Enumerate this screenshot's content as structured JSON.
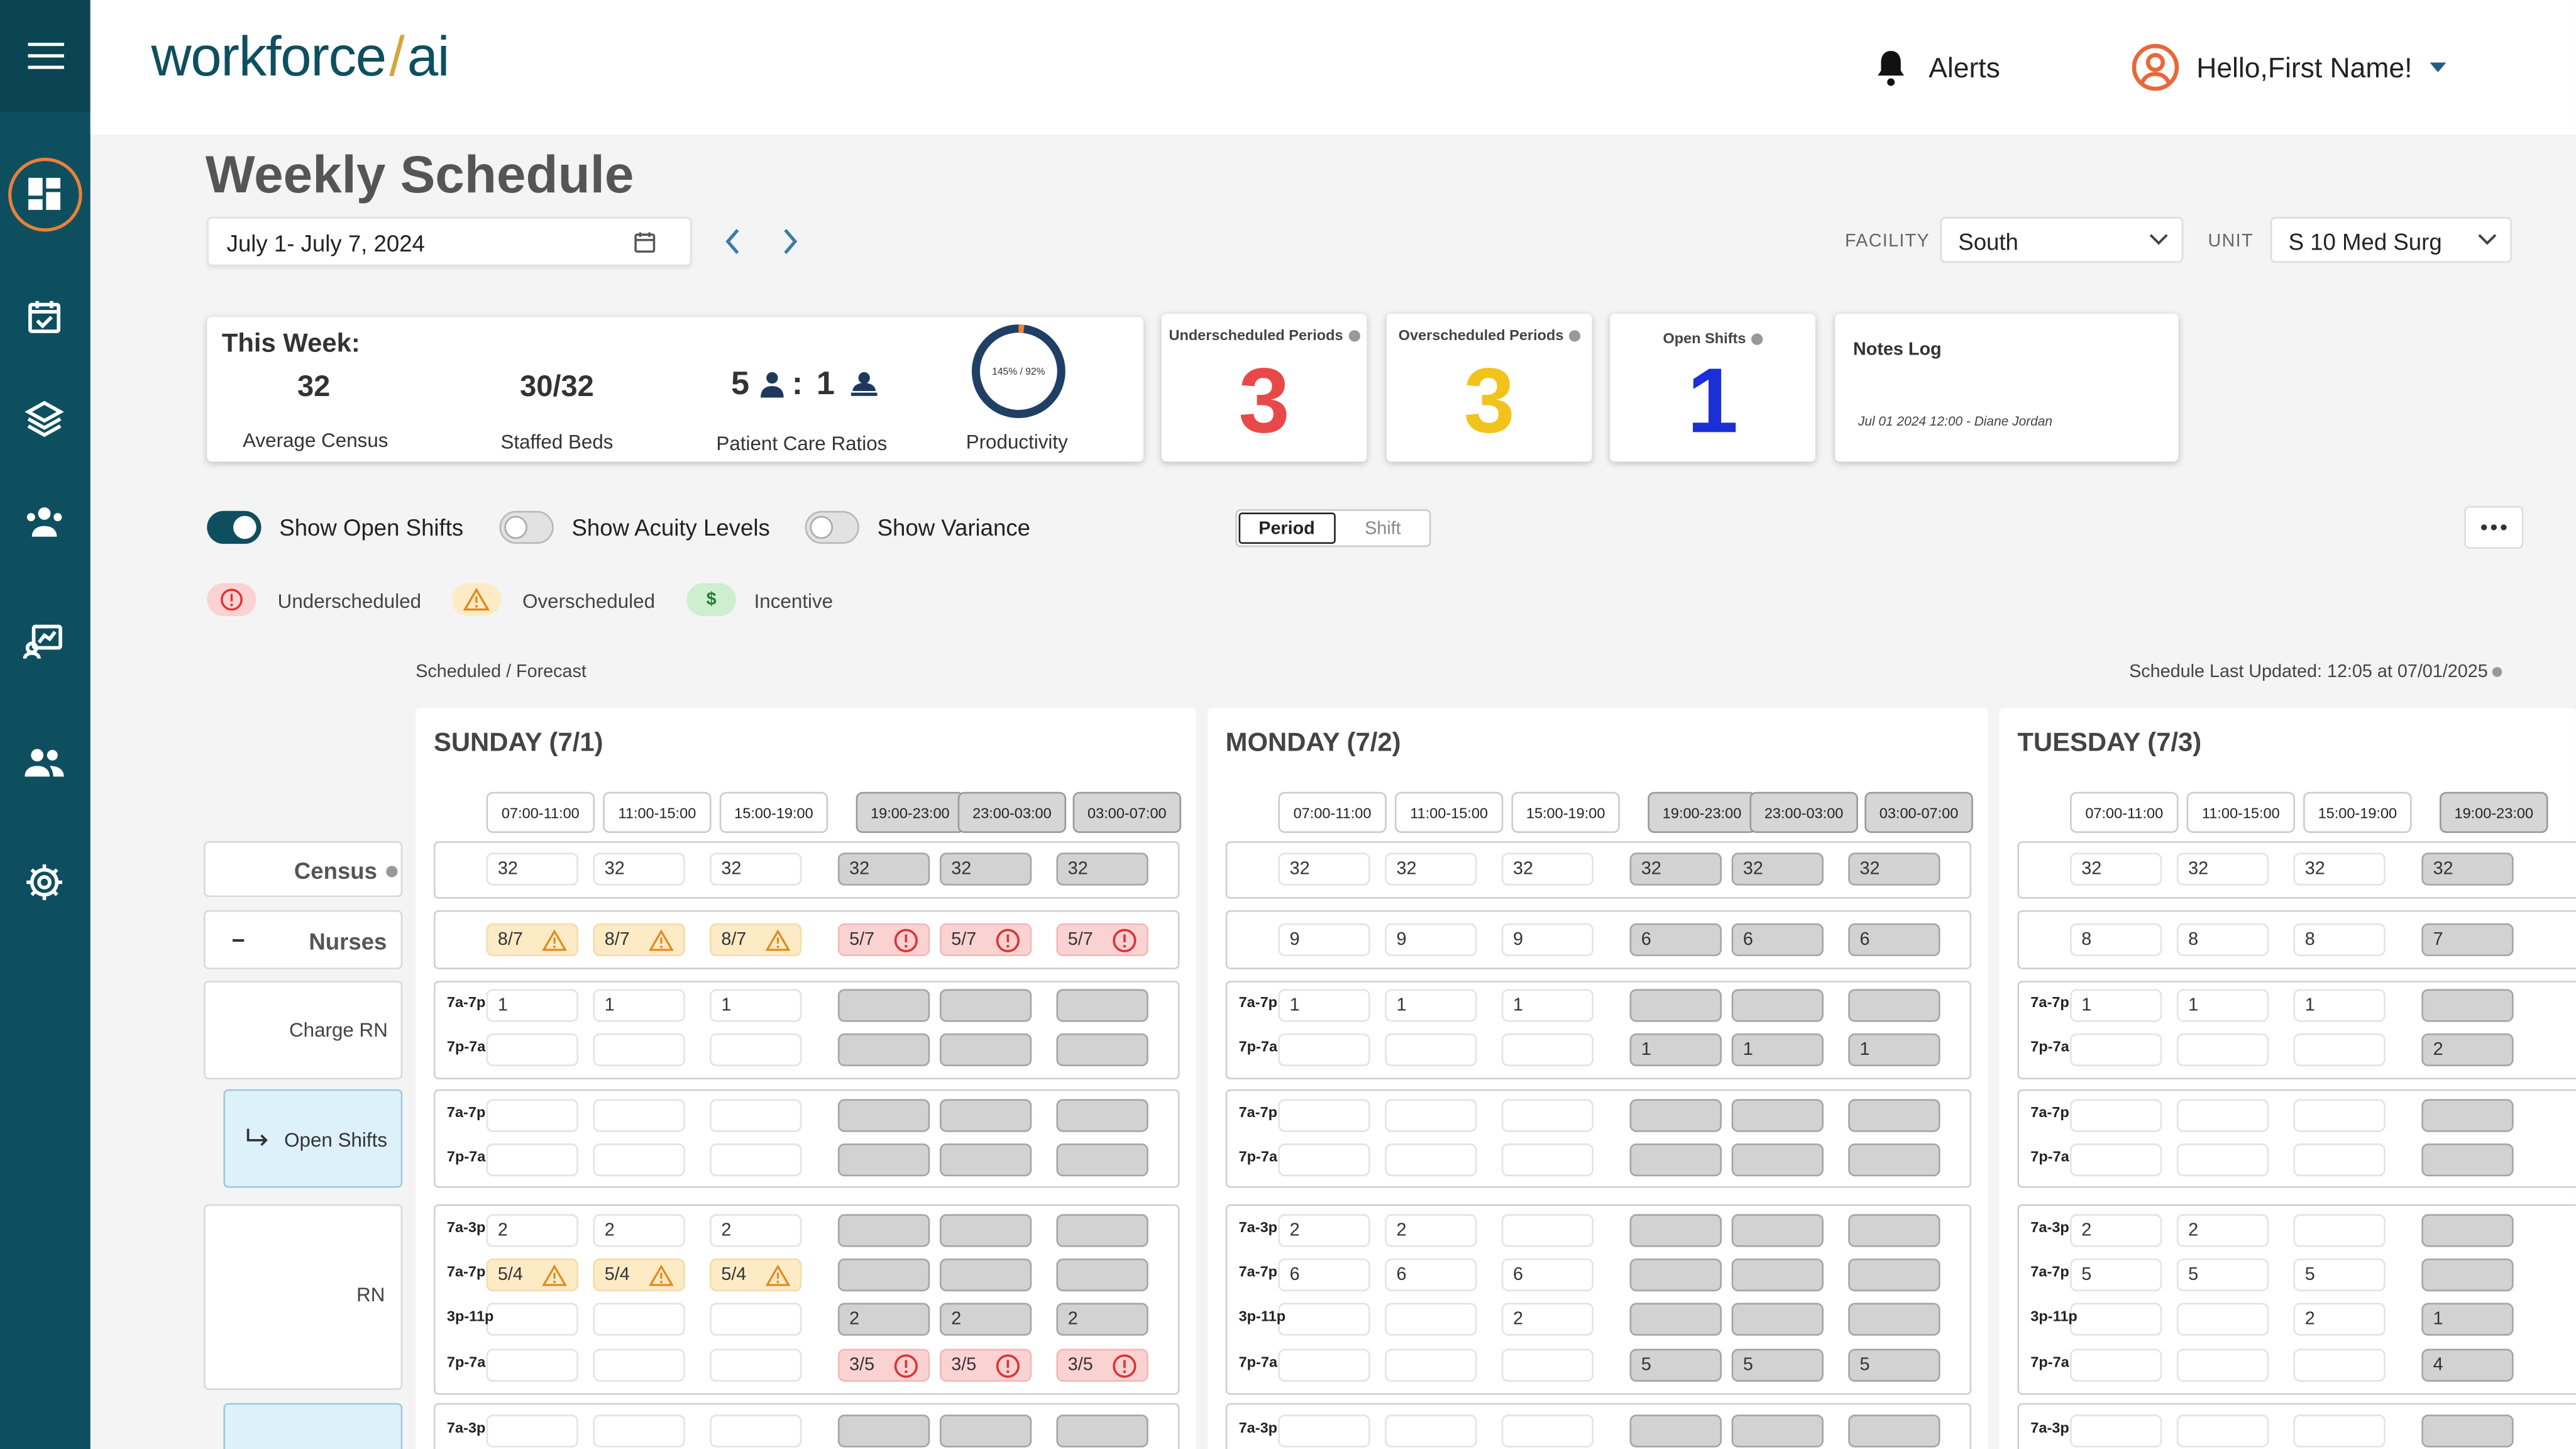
{
  "app": {
    "logo_main": "workforce",
    "logo_slash": "/",
    "logo_ai": "ai"
  },
  "header": {
    "alerts_label": "Alerts",
    "greeting": "Hello,First Name!"
  },
  "sidebar": {
    "items": [
      "dashboard-icon",
      "calendar-check-icon",
      "layers-icon",
      "staff-group-icon",
      "chart-report-icon",
      "users-icon",
      "settings-gear-icon"
    ]
  },
  "page": {
    "title": "Weekly Schedule",
    "date_range": "July 1- July 7, 2024"
  },
  "filters": {
    "facility_label": "FACILITY",
    "facility_value": "South",
    "unit_label": "UNIT",
    "unit_value": "S 10 Med Surg"
  },
  "week_summary": {
    "heading": "This Week:",
    "avg_census_value": "32",
    "avg_census_label": "Average Census",
    "staffed_beds_value": "30/32",
    "staffed_beds_label": "Staffed Beds",
    "ratio_left": "5",
    "ratio_sep": ":",
    "ratio_right": "1",
    "ratio_label": "Patient Care Ratios",
    "productivity_text": "145% / 92%",
    "productivity_label": "Productivity",
    "productivity_fill": 0.02
  },
  "kpis": {
    "underscheduled": {
      "title": "Underscheduled Periods",
      "value": "3",
      "color": "#e84848"
    },
    "overscheduled": {
      "title": "Overscheduled Periods",
      "value": "3",
      "color": "#f2c31a"
    },
    "open_shifts": {
      "title": "Open Shifts",
      "value": "1",
      "color": "#1a2fd6"
    }
  },
  "notes": {
    "title": "Notes Log",
    "entry": "Jul 01 2024 12:00 - Diane Jordan"
  },
  "toggles": {
    "open_shifts": {
      "label": "Show Open Shifts",
      "on": true
    },
    "acuity": {
      "label": "Show Acuity Levels",
      "on": false
    },
    "variance": {
      "label": "Show Variance",
      "on": false
    }
  },
  "view_toggle": {
    "period": "Period",
    "shift": "Shift",
    "selected": "Period"
  },
  "legend": {
    "under": "Underscheduled",
    "over": "Overscheduled",
    "incentive": "Incentive",
    "incentive_symbol": "$"
  },
  "grid": {
    "caption": "Scheduled / Forecast",
    "last_updated": "Schedule Last Updated: 12:05 at 07/01/2025",
    "row_labels": {
      "census": "Census",
      "nurses_toggle": "−",
      "nurses": "Nurses",
      "charge_rn": "Charge RN",
      "open_shifts": "Open Shifts",
      "rn": "RN"
    },
    "days": [
      {
        "title": "SUNDAY (7/1)",
        "slots": [
          "07:00-11:00",
          "11:00-15:00",
          "15:00-19:00",
          "19:00-23:00",
          "23:00-03:00",
          "03:00-07:00"
        ],
        "census": [
          "32",
          "32",
          "32",
          "32",
          "32",
          "32"
        ],
        "nurses": [
          "8/7",
          "8/7",
          "8/7",
          "5/7",
          "5/7",
          "5/7"
        ],
        "charge_7a7p": [
          "1",
          "1",
          "1",
          "",
          "",
          ""
        ],
        "charge_7p7a": [
          "",
          "",
          "",
          "",
          "",
          ""
        ],
        "rn_7a3p": [
          "2",
          "2",
          "2",
          "",
          "",
          ""
        ],
        "rn_7a7p": [
          "5/4",
          "5/4",
          "5/4",
          "",
          "",
          ""
        ],
        "rn_3p11p": [
          "",
          "",
          "",
          "2",
          "2",
          "2"
        ],
        "rn_7p7a": [
          "",
          "",
          "",
          "3/5",
          "3/5",
          "3/5"
        ]
      },
      {
        "title": "MONDAY (7/2)",
        "slots": [
          "07:00-11:00",
          "11:00-15:00",
          "15:00-19:00",
          "19:00-23:00",
          "23:00-03:00",
          "03:00-07:00"
        ],
        "census": [
          "32",
          "32",
          "32",
          "32",
          "32",
          "32"
        ],
        "nurses": [
          "9",
          "9",
          "9",
          "6",
          "6",
          "6"
        ],
        "charge_7a7p": [
          "1",
          "1",
          "1",
          "",
          "",
          ""
        ],
        "charge_7p7a": [
          "",
          "",
          "",
          "1",
          "1",
          "1"
        ],
        "rn_7a3p": [
          "2",
          "2",
          "",
          "",
          "",
          ""
        ],
        "rn_7a7p": [
          "6",
          "6",
          "6",
          "",
          "",
          ""
        ],
        "rn_3p11p": [
          "",
          "",
          "2",
          "",
          "",
          ""
        ],
        "rn_7p7a": [
          "",
          "",
          "",
          "5",
          "5",
          "5"
        ]
      },
      {
        "title": "TUESDAY (7/3)",
        "slots": [
          "07:00-11:00",
          "11:00-15:00",
          "15:00-19:00",
          "19:00-23:00"
        ],
        "census": [
          "32",
          "32",
          "32",
          "32"
        ],
        "nurses": [
          "8",
          "8",
          "8",
          "7"
        ],
        "charge_7a7p": [
          "1",
          "1",
          "1",
          ""
        ],
        "charge_7p7a": [
          "",
          "",
          "",
          "2"
        ],
        "rn_7a3p": [
          "2",
          "2",
          "",
          ""
        ],
        "rn_7a7p": [
          "5",
          "5",
          "5",
          ""
        ],
        "rn_3p11p": [
          "",
          "",
          "2",
          "1"
        ],
        "rn_7p7a": [
          "",
          "",
          "",
          "4"
        ]
      }
    ],
    "shift_labels": {
      "s7a7p": "7a-7p",
      "s7p7a": "7p-7a",
      "s7a3p": "7a-3p",
      "s3p11p": "3p-11p"
    }
  }
}
